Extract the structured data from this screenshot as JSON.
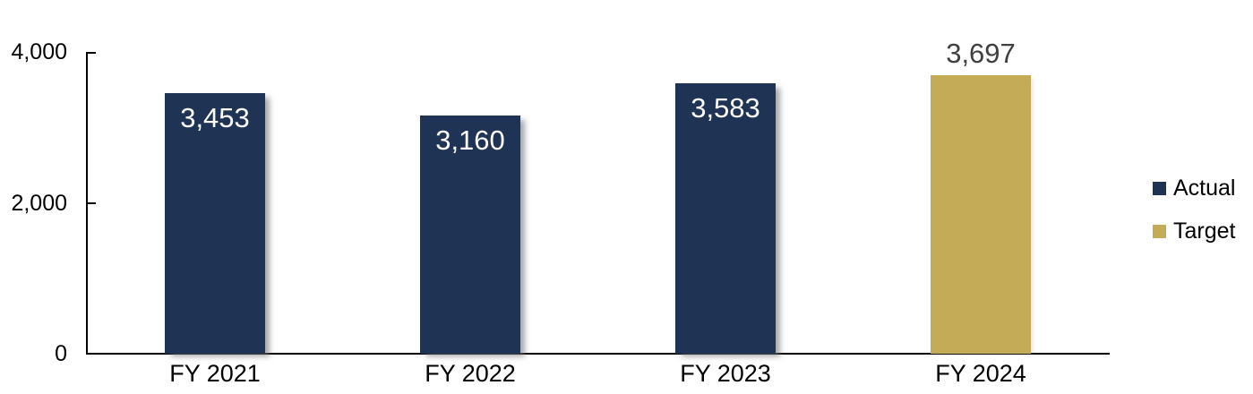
{
  "chart_data": {
    "type": "bar",
    "title": "",
    "xlabel": "",
    "ylabel": "",
    "grid": false,
    "legend_position": "right",
    "categories": [
      "FY 2021",
      "FY 2022",
      "FY 2023",
      "FY 2024"
    ],
    "bars": [
      {
        "category": "FY 2021",
        "value": 3453,
        "label": "3,453",
        "series": "Actual",
        "label_position": "inside"
      },
      {
        "category": "FY 2022",
        "value": 3160,
        "label": "3,160",
        "series": "Actual",
        "label_position": "inside"
      },
      {
        "category": "FY 2023",
        "value": 3583,
        "label": "3,583",
        "series": "Actual",
        "label_position": "inside"
      },
      {
        "category": "FY 2024",
        "value": 3697,
        "label": "3,697",
        "series": "Target",
        "label_position": "above"
      }
    ],
    "series": [
      {
        "name": "Actual",
        "color": "#1F3355"
      },
      {
        "name": "Target",
        "color": "#C4AB58"
      }
    ],
    "y_axis": {
      "min": 0,
      "max": 4000,
      "tick_interval": 2000,
      "ticks": [
        "0",
        "2,000",
        "4,000"
      ]
    }
  },
  "colors": {
    "background": "#FFFFFF",
    "axis": "#000000",
    "bar_actual": "#1F3355",
    "bar_target": "#C4AB58",
    "label_inside": "#FFFFFF",
    "label_above": "#404040"
  }
}
